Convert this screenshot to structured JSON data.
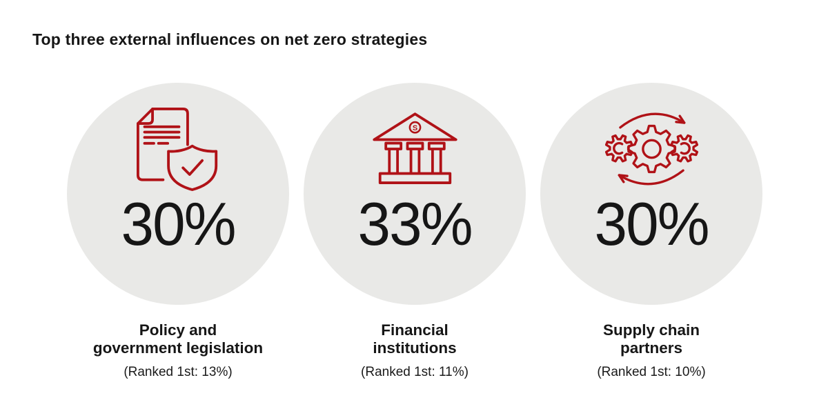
{
  "page": {
    "background": "#FFFFFF",
    "title": "Top three external influences on net zero strategies"
  },
  "colors": {
    "accent_red": "#B01217",
    "circle_fill": "#E9E9E7",
    "text": "#161616"
  },
  "items": [
    {
      "icon": "document-shield-icon",
      "percent": "30%",
      "label_line1": "Policy and",
      "label_line2": "government legislation",
      "ranked_note": "(Ranked 1st: 13%)"
    },
    {
      "icon": "bank-icon",
      "icon_letter": "S",
      "percent": "33%",
      "label_line1": "Financial",
      "label_line2": "institutions",
      "ranked_note": "(Ranked 1st: 11%)"
    },
    {
      "icon": "gears-cycle-icon",
      "percent": "30%",
      "label_line1": "Supply chain",
      "label_line2": "partners",
      "ranked_note": "(Ranked 1st: 10%)"
    }
  ],
  "chart_data": {
    "type": "table",
    "title": "Top three external influences on net zero strategies",
    "categories": [
      "Policy and government legislation",
      "Financial institutions",
      "Supply chain partners"
    ],
    "series": [
      {
        "name": "percent",
        "values": [
          30,
          33,
          30
        ]
      },
      {
        "name": "ranked_1st_percent",
        "values": [
          13,
          11,
          10
        ]
      }
    ],
    "legend_position": "none",
    "grid": false
  }
}
